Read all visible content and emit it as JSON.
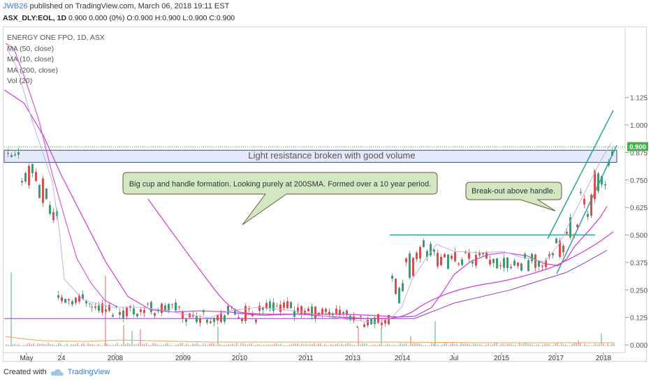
{
  "header": {
    "author": "JWB26",
    "published_text": "published on TradingView.com, March 06, 2018 19:11 EST",
    "symbol": "ASX_DLY:EOL, 1D",
    "quote": "0.900 0.000 (0%) O:0.900 H:0.900 L:0.900 C:0.900"
  },
  "legend": {
    "title": "ENERGY ONE FPO, 1D, ASX",
    "items": [
      "MA (50, close)",
      "MA (10, close)",
      "MA (200, close)",
      "Vol (20)"
    ]
  },
  "footer": {
    "created_with": "Created with",
    "brand": "TradingView"
  },
  "colors": {
    "up": "#3c9c6e",
    "down": "#d94e4e",
    "ma200": "#d23bd2",
    "ma10": "#b9b3ea",
    "annotation_fill": "#d2e8c2",
    "annotation_border": "#6b5a3b",
    "resistance_fill": "#e4eafb",
    "teal_line": "#26a69a",
    "price_label": "#4caf50"
  },
  "chart_data": {
    "type": "candlestick",
    "title": "ENERGY ONE FPO, 1D, ASX",
    "y_ticks": [
      "1.125",
      "1.000",
      "0.875",
      "0.750",
      "0.625",
      "0.500",
      "0.375",
      "0.250",
      "0.125",
      "0.000"
    ],
    "x_ticks": [
      "May",
      "24",
      "2008",
      "2009",
      "2010",
      "2011",
      "2013",
      "2014",
      "Jul",
      "2015",
      "2017",
      "2018"
    ],
    "ylim": [
      0,
      1.2
    ],
    "last_price_label": "0.900",
    "last_price": 0.9,
    "resistance_zone": {
      "low": 0.83,
      "high": 0.885,
      "label": "Light resistance broken with good volume"
    },
    "handle_level": 0.5,
    "annotations": [
      {
        "text": "Big cup and handle formation. Looking purely at 200SMA. Formed over a 10 year period."
      },
      {
        "text": "Break-out above handle."
      }
    ],
    "ma200": [
      {
        "x": 0.0,
        "y": 1.16
      },
      {
        "x": 0.35,
        "y": 1.1
      },
      {
        "x": 0.7,
        "y": 0.95
      },
      {
        "x": 1.0,
        "y": 0.78
      },
      {
        "x": 1.4,
        "y": 0.58
      },
      {
        "x": 1.8,
        "y": 0.38
      },
      {
        "x": 2.2,
        "y": 0.22
      },
      {
        "x": 2.6,
        "y": 0.16
      },
      {
        "x": 3.0,
        "y": 0.15
      },
      {
        "x": 3.5,
        "y": 0.155
      },
      {
        "x": 4.0,
        "y": 0.15
      },
      {
        "x": 4.3,
        "y": 0.14
      },
      {
        "x": 4.6,
        "y": 0.135
      },
      {
        "x": 5.2,
        "y": 0.14
      },
      {
        "x": 6.0,
        "y": 0.14
      },
      {
        "x": 6.5,
        "y": 0.135
      },
      {
        "x": 7.0,
        "y": 0.127
      },
      {
        "x": 7.3,
        "y": 0.13
      },
      {
        "x": 7.6,
        "y": 0.17
      },
      {
        "x": 7.8,
        "y": 0.24
      },
      {
        "x": 8.0,
        "y": 0.32
      },
      {
        "x": 8.3,
        "y": 0.38
      },
      {
        "x": 8.6,
        "y": 0.41
      },
      {
        "x": 8.9,
        "y": 0.42
      },
      {
        "x": 9.3,
        "y": 0.405
      },
      {
        "x": 9.6,
        "y": 0.37
      },
      {
        "x": 9.85,
        "y": 0.36
      },
      {
        "x": 10.0,
        "y": 0.39
      },
      {
        "x": 10.15,
        "y": 0.45
      },
      {
        "x": 10.4,
        "y": 0.52
      },
      {
        "x": 10.6,
        "y": 0.58
      },
      {
        "x": 10.72,
        "y": 0.63
      }
    ],
    "ma50": [
      {
        "x": 0.0,
        "y": 0.12
      },
      {
        "x": 1.5,
        "y": 0.12
      },
      {
        "x": 3.0,
        "y": 0.12
      },
      {
        "x": 4.3,
        "y": 0.12
      },
      {
        "x": 5.5,
        "y": 0.12
      },
      {
        "x": 6.5,
        "y": 0.12
      },
      {
        "x": 7.0,
        "y": 0.12
      },
      {
        "x": 7.3,
        "y": 0.12
      },
      {
        "x": 7.5,
        "y": 0.14
      },
      {
        "x": 8.0,
        "y": 0.19
      },
      {
        "x": 8.5,
        "y": 0.22
      },
      {
        "x": 9.0,
        "y": 0.25
      },
      {
        "x": 9.5,
        "y": 0.29
      },
      {
        "x": 10.0,
        "y": 0.33
      },
      {
        "x": 10.3,
        "y": 0.37
      },
      {
        "x": 10.72,
        "y": 0.43
      }
    ]
  }
}
